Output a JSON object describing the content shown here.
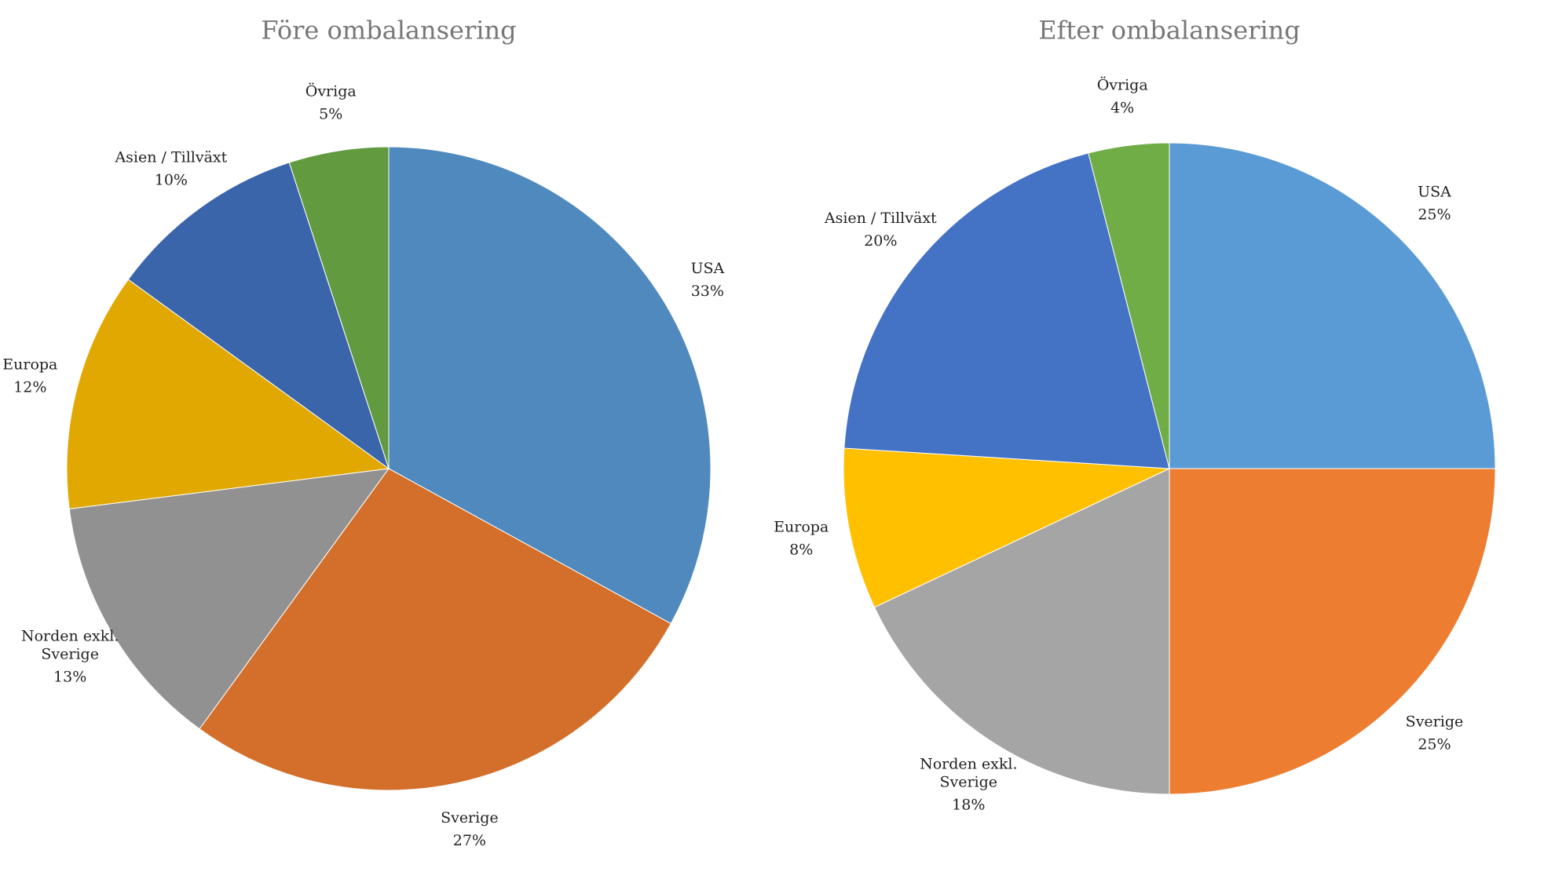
{
  "chart_data": [
    {
      "type": "pie",
      "title": "Före ombalansering",
      "categories": [
        "USA",
        "Sverige",
        "Norden exkl. Sverige",
        "Europa",
        "Asien / Tillväxt",
        "Övriga"
      ],
      "values": [
        33,
        27,
        13,
        12,
        10,
        5
      ],
      "value_labels": [
        "33%",
        "27%",
        "13%",
        "12%",
        "10%",
        "5%"
      ],
      "colors": [
        "#4f89bd",
        "#d36f2b",
        "#919191",
        "#e0a800",
        "#3a65ab",
        "#629a3f"
      ]
    },
    {
      "type": "pie",
      "title": "Efter ombalansering",
      "categories": [
        "USA",
        "Sverige",
        "Norden exkl. Sverige",
        "Europa",
        "Asien / Tillväxt",
        "Övriga"
      ],
      "values": [
        25,
        25,
        18,
        8,
        20,
        4
      ],
      "value_labels": [
        "25%",
        "25%",
        "18%",
        "8%",
        "20%",
        "4%"
      ],
      "colors": [
        "#5b9bd5",
        "#ed7d31",
        "#a5a5a5",
        "#ffc000",
        "#4472c4",
        "#70ad47"
      ]
    }
  ]
}
